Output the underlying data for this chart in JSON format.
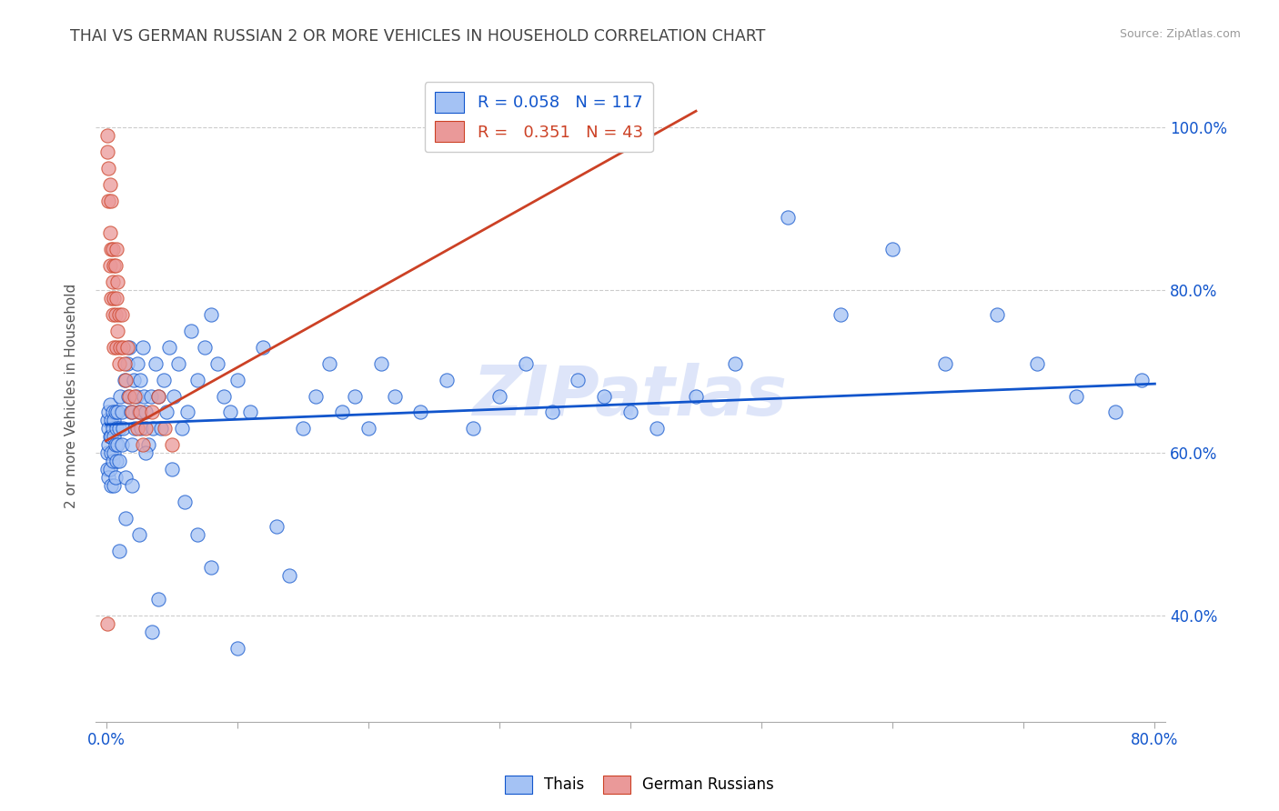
{
  "title": "THAI VS GERMAN RUSSIAN 2 OR MORE VEHICLES IN HOUSEHOLD CORRELATION CHART",
  "source": "Source: ZipAtlas.com",
  "ylabel": "2 or more Vehicles in Household",
  "watermark": "ZIPatlas",
  "xlim": [
    -0.008,
    0.808
  ],
  "ylim": [
    0.27,
    1.07
  ],
  "xtick_positions": [
    0.0,
    0.1,
    0.2,
    0.3,
    0.4,
    0.5,
    0.6,
    0.7,
    0.8
  ],
  "xtick_labels": [
    "0.0%",
    "",
    "",
    "",
    "",
    "",
    "",
    "",
    "80.0%"
  ],
  "ytick_positions": [
    0.4,
    0.6,
    0.8,
    1.0
  ],
  "ytick_labels": [
    "40.0%",
    "60.0%",
    "80.0%",
    "100.0%"
  ],
  "blue_fill": "#a4c2f4",
  "blue_edge": "#1155cc",
  "pink_fill": "#ea9999",
  "pink_edge": "#cc4125",
  "blue_line_color": "#1155cc",
  "pink_line_color": "#cc4125",
  "grid_color": "#cccccc",
  "title_color": "#434343",
  "axis_label_color": "#555555",
  "tick_color": "#1155cc",
  "source_color": "#999999",
  "watermark_color": "#c9d5f5",
  "R_blue": 0.058,
  "N_blue": 117,
  "R_pink": 0.351,
  "N_pink": 43,
  "marker_size": 120,
  "marker_alpha": 0.75,
  "blue_x": [
    0.001,
    0.001,
    0.001,
    0.002,
    0.002,
    0.002,
    0.002,
    0.003,
    0.003,
    0.003,
    0.004,
    0.004,
    0.004,
    0.004,
    0.005,
    0.005,
    0.005,
    0.006,
    0.006,
    0.006,
    0.006,
    0.007,
    0.007,
    0.007,
    0.008,
    0.008,
    0.009,
    0.009,
    0.01,
    0.01,
    0.011,
    0.012,
    0.012,
    0.013,
    0.014,
    0.015,
    0.016,
    0.017,
    0.018,
    0.019,
    0.02,
    0.021,
    0.022,
    0.023,
    0.024,
    0.025,
    0.026,
    0.027,
    0.028,
    0.029,
    0.03,
    0.032,
    0.034,
    0.036,
    0.038,
    0.04,
    0.042,
    0.044,
    0.046,
    0.048,
    0.052,
    0.055,
    0.058,
    0.062,
    0.065,
    0.07,
    0.075,
    0.08,
    0.085,
    0.09,
    0.095,
    0.1,
    0.11,
    0.12,
    0.13,
    0.14,
    0.15,
    0.16,
    0.17,
    0.18,
    0.19,
    0.2,
    0.21,
    0.22,
    0.24,
    0.26,
    0.28,
    0.3,
    0.32,
    0.34,
    0.36,
    0.38,
    0.4,
    0.42,
    0.45,
    0.48,
    0.52,
    0.56,
    0.6,
    0.64,
    0.68,
    0.71,
    0.74,
    0.77,
    0.79,
    0.01,
    0.015,
    0.02,
    0.025,
    0.03,
    0.035,
    0.04,
    0.05,
    0.06,
    0.07,
    0.08,
    0.1
  ],
  "blue_y": [
    0.64,
    0.6,
    0.58,
    0.65,
    0.61,
    0.57,
    0.63,
    0.62,
    0.58,
    0.66,
    0.6,
    0.64,
    0.56,
    0.62,
    0.63,
    0.59,
    0.65,
    0.6,
    0.56,
    0.64,
    0.62,
    0.61,
    0.57,
    0.65,
    0.63,
    0.59,
    0.61,
    0.65,
    0.59,
    0.63,
    0.67,
    0.61,
    0.65,
    0.63,
    0.69,
    0.57,
    0.71,
    0.67,
    0.73,
    0.65,
    0.61,
    0.69,
    0.63,
    0.67,
    0.71,
    0.65,
    0.69,
    0.63,
    0.73,
    0.67,
    0.65,
    0.61,
    0.67,
    0.63,
    0.71,
    0.67,
    0.63,
    0.69,
    0.65,
    0.73,
    0.67,
    0.71,
    0.63,
    0.65,
    0.75,
    0.69,
    0.73,
    0.77,
    0.71,
    0.67,
    0.65,
    0.69,
    0.65,
    0.73,
    0.51,
    0.45,
    0.63,
    0.67,
    0.71,
    0.65,
    0.67,
    0.63,
    0.71,
    0.67,
    0.65,
    0.69,
    0.63,
    0.67,
    0.71,
    0.65,
    0.69,
    0.67,
    0.65,
    0.63,
    0.67,
    0.71,
    0.89,
    0.77,
    0.85,
    0.71,
    0.77,
    0.71,
    0.67,
    0.65,
    0.69,
    0.48,
    0.52,
    0.56,
    0.5,
    0.6,
    0.38,
    0.42,
    0.58,
    0.54,
    0.5,
    0.46,
    0.36
  ],
  "pink_x": [
    0.001,
    0.001,
    0.002,
    0.002,
    0.003,
    0.003,
    0.003,
    0.004,
    0.004,
    0.004,
    0.005,
    0.005,
    0.005,
    0.006,
    0.006,
    0.006,
    0.007,
    0.007,
    0.008,
    0.008,
    0.008,
    0.009,
    0.009,
    0.01,
    0.01,
    0.011,
    0.012,
    0.013,
    0.014,
    0.015,
    0.016,
    0.018,
    0.02,
    0.022,
    0.024,
    0.026,
    0.028,
    0.03,
    0.035,
    0.04,
    0.045,
    0.05,
    0.001
  ],
  "pink_y": [
    0.99,
    0.97,
    0.95,
    0.91,
    0.87,
    0.83,
    0.93,
    0.85,
    0.79,
    0.91,
    0.81,
    0.77,
    0.85,
    0.79,
    0.73,
    0.83,
    0.77,
    0.83,
    0.73,
    0.79,
    0.85,
    0.75,
    0.81,
    0.71,
    0.77,
    0.73,
    0.77,
    0.73,
    0.71,
    0.69,
    0.73,
    0.67,
    0.65,
    0.67,
    0.63,
    0.65,
    0.61,
    0.63,
    0.65,
    0.67,
    0.63,
    0.61,
    0.39
  ],
  "blue_trend_x": [
    0.0,
    0.8
  ],
  "blue_trend_y": [
    0.635,
    0.685
  ],
  "pink_trend_x": [
    0.0,
    0.45
  ],
  "pink_trend_y": [
    0.615,
    1.02
  ]
}
